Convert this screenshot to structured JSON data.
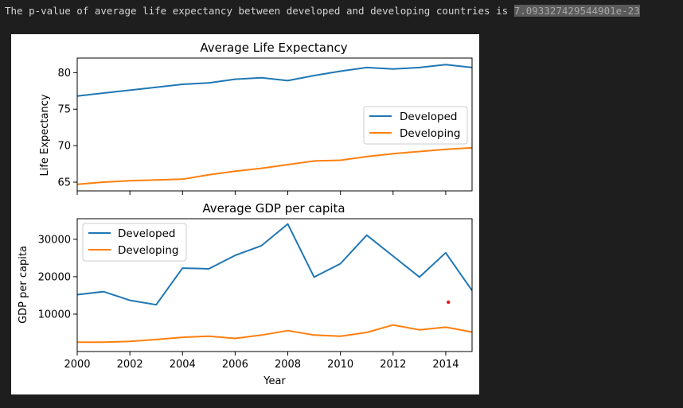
{
  "output": {
    "prefix": "The p-value of average life expectancy between developed and developing countries is ",
    "pvalue": "7.093327429544901e-23"
  },
  "colors": {
    "developed": "#1f77b4",
    "developing": "#ff7f0e",
    "marker": "#e31a1c"
  },
  "chart_data": [
    {
      "type": "line",
      "title": "Average Life Expectancy",
      "xlabel": "",
      "ylabel": "Life Expectancy",
      "x": [
        2000,
        2001,
        2002,
        2003,
        2004,
        2005,
        2006,
        2007,
        2008,
        2009,
        2010,
        2011,
        2012,
        2013,
        2014,
        2015
      ],
      "xlim": [
        2000,
        2015
      ],
      "ylim": [
        63.8,
        82.0
      ],
      "yticks": [
        65,
        70,
        75,
        80
      ],
      "xticks": [
        2000,
        2002,
        2004,
        2006,
        2008,
        2010,
        2012,
        2014
      ],
      "legend": "center-right",
      "series": [
        {
          "name": "Developed",
          "values": [
            76.8,
            77.2,
            77.6,
            78.0,
            78.4,
            78.6,
            79.1,
            79.3,
            78.9,
            79.6,
            80.2,
            80.7,
            80.5,
            80.7,
            81.1,
            80.7
          ]
        },
        {
          "name": "Developing",
          "values": [
            64.7,
            65.0,
            65.2,
            65.3,
            65.4,
            66.0,
            66.5,
            66.9,
            67.4,
            67.9,
            68.0,
            68.5,
            68.9,
            69.2,
            69.5,
            69.7
          ]
        }
      ]
    },
    {
      "type": "line",
      "title": "Average GDP per capita",
      "xlabel": "Year",
      "ylabel": "GDP per capita",
      "x": [
        2000,
        2001,
        2002,
        2003,
        2004,
        2005,
        2006,
        2007,
        2008,
        2009,
        2010,
        2011,
        2012,
        2013,
        2014,
        2015
      ],
      "xlim": [
        2000,
        2015
      ],
      "ylim": [
        0,
        35500
      ],
      "yticks": [
        10000,
        20000,
        30000
      ],
      "xticks": [
        2000,
        2002,
        2004,
        2006,
        2008,
        2010,
        2012,
        2014
      ],
      "legend": "top-left",
      "series": [
        {
          "name": "Developed",
          "values": [
            15200,
            16000,
            13700,
            12500,
            22300,
            22100,
            25700,
            28300,
            34100,
            19900,
            23500,
            31100,
            25500,
            19900,
            26400,
            16300
          ]
        },
        {
          "name": "Developing",
          "values": [
            2500,
            2500,
            2700,
            3200,
            3800,
            4100,
            3500,
            4400,
            5600,
            4400,
            4100,
            5100,
            7100,
            5800,
            6500,
            5200
          ]
        }
      ],
      "annotations": [
        {
          "type": "point",
          "x": 2014.1,
          "y": 13200
        }
      ]
    }
  ]
}
